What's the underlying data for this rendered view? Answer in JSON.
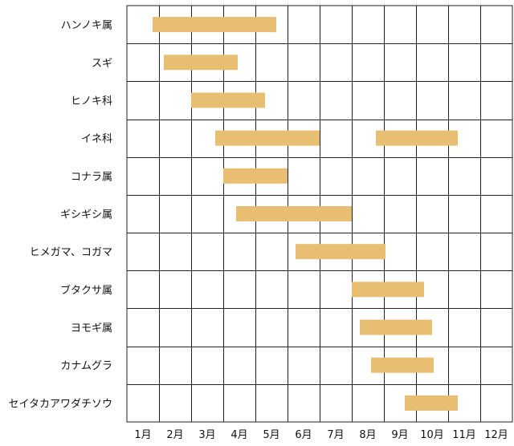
{
  "chart_data": {
    "type": "bar",
    "orientation": "horizontal-range",
    "title": "",
    "xlabel": "",
    "ylabel": "",
    "months": [
      "1月",
      "2月",
      "3月",
      "4月",
      "5月",
      "6月",
      "7月",
      "8月",
      "9月",
      "10月",
      "11月",
      "12月"
    ],
    "xlim": [
      0,
      12
    ],
    "grid": true,
    "bar_color": "#E8BE72",
    "categories": [
      "ハンノキ属",
      "スギ",
      "ヒノキ科",
      "イネ科",
      "コナラ属",
      "ギシギシ属",
      "ヒメガマ、コガマ",
      "ブタクサ属",
      "ヨモギ属",
      "カナムグラ",
      "セイタカアワダチソウ"
    ],
    "ranges": [
      [
        [
          0.8,
          4.65
        ]
      ],
      [
        [
          1.15,
          3.45
        ]
      ],
      [
        [
          2.0,
          4.3
        ]
      ],
      [
        [
          2.75,
          6.0
        ],
        [
          7.75,
          10.3
        ]
      ],
      [
        [
          3.0,
          5.0
        ]
      ],
      [
        [
          3.4,
          7.0
        ]
      ],
      [
        [
          5.25,
          8.05
        ]
      ],
      [
        [
          7.0,
          9.25
        ]
      ],
      [
        [
          7.25,
          9.5
        ]
      ],
      [
        [
          7.6,
          9.55
        ]
      ],
      [
        [
          8.65,
          10.3
        ]
      ]
    ]
  }
}
